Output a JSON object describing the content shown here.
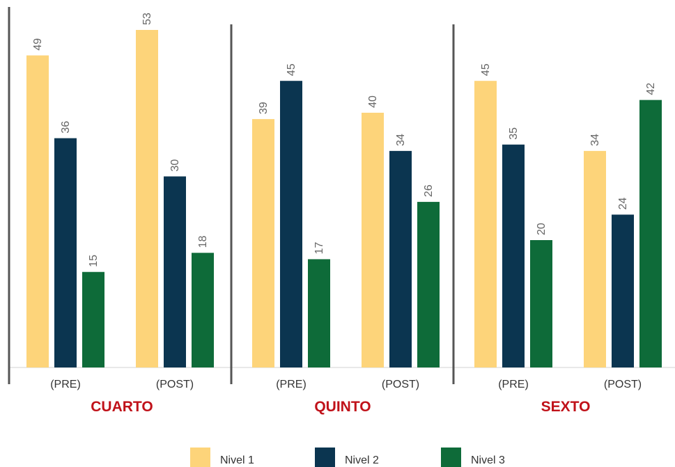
{
  "chart_data": {
    "type": "bar",
    "groups": [
      {
        "name": "CUARTO",
        "subcategories": [
          "(PRE)",
          "(POST)"
        ],
        "values": [
          [
            49,
            36,
            15
          ],
          [
            53,
            30,
            18
          ]
        ]
      },
      {
        "name": "QUINTO",
        "subcategories": [
          "(PRE)",
          "(POST)"
        ],
        "values": [
          [
            39,
            45,
            17
          ],
          [
            40,
            34,
            26
          ]
        ]
      },
      {
        "name": "SEXTO",
        "subcategories": [
          "(PRE)",
          "(POST)"
        ],
        "values": [
          [
            45,
            35,
            20
          ],
          [
            34,
            24,
            42
          ]
        ]
      }
    ],
    "series": [
      {
        "name": "Nivel 1",
        "color": "#fdd47a"
      },
      {
        "name": "Nivel 2",
        "color": "#0b3550"
      },
      {
        "name": "Nivel 3",
        "color": "#0e6b39"
      }
    ],
    "ylim": [
      0,
      53
    ],
    "data_labels": true,
    "data_label_rotation": "vertical",
    "grid": false,
    "legend_position": "bottom-center"
  }
}
